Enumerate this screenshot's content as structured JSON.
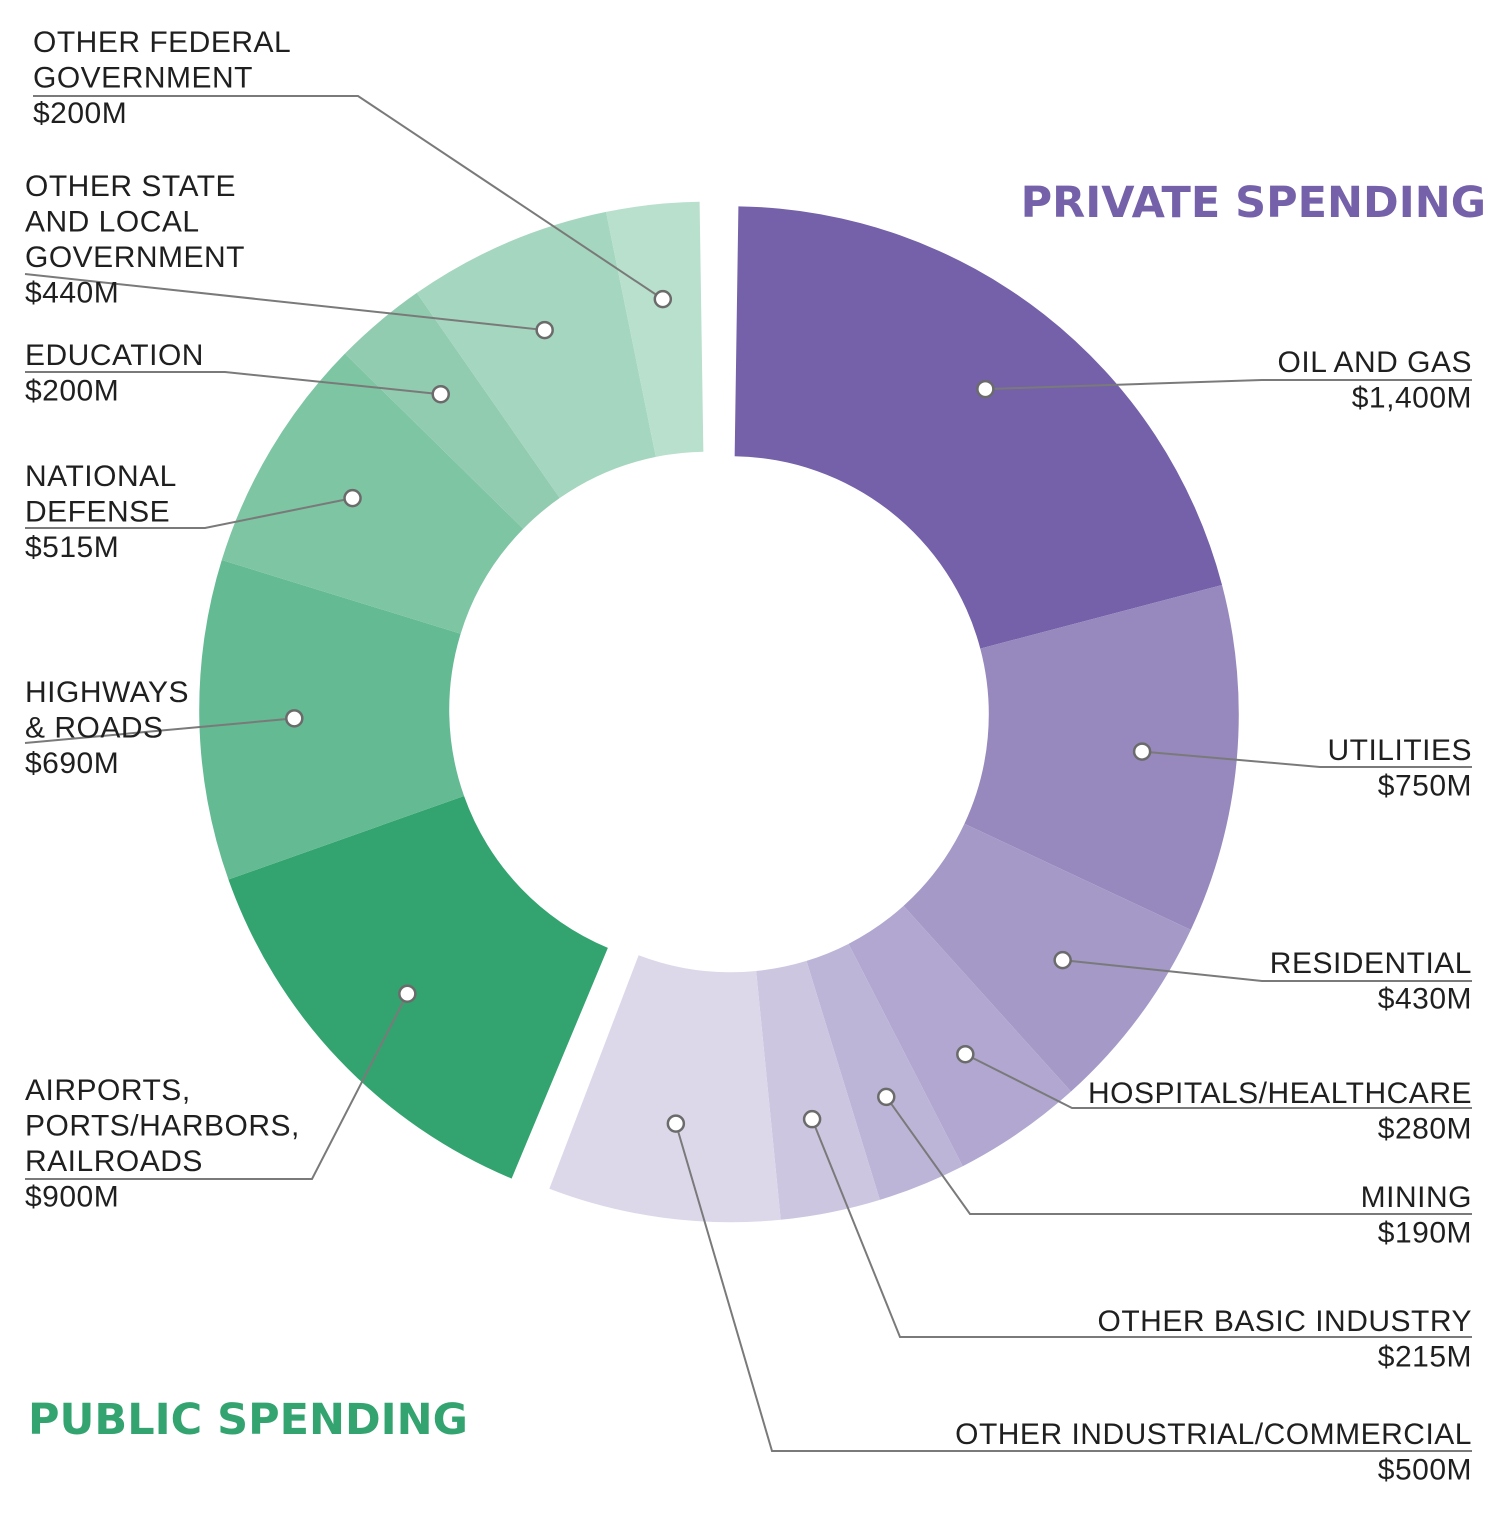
{
  "chart_data": {
    "type": "pie",
    "variant": "donut",
    "unit": "$M",
    "groups": [
      {
        "name": "PRIVATE SPENDING",
        "color": "#7461a9",
        "slices": [
          {
            "label": "OIL AND GAS",
            "value": 1400,
            "value_text": "$1,400M",
            "color": "#7461a9"
          },
          {
            "label": "UTILITIES",
            "value": 750,
            "value_text": "$750M",
            "color": "#9789bd"
          },
          {
            "label": "RESIDENTIAL",
            "value": 430,
            "value_text": "$430M",
            "color": "#a599c8"
          },
          {
            "label": "HOSPITALS/HEALTHCARE",
            "value": 280,
            "value_text": "$280M",
            "color": "#b1a7d0"
          },
          {
            "label": "MINING",
            "value": 190,
            "value_text": "$190M",
            "color": "#bdb5d7"
          },
          {
            "label": "OTHER BASIC INDUSTRY",
            "value": 215,
            "value_text": "$215M",
            "color": "#ccc6e0"
          },
          {
            "label": "OTHER INDUSTRIAL/COMMERCIAL",
            "value": 500,
            "value_text": "$500M",
            "color": "#dcd8ea"
          }
        ]
      },
      {
        "name": "PUBLIC SPENDING",
        "color": "#33a46f",
        "slices": [
          {
            "label": "AIRPORTS, PORTS/HARBORS, RAILROADS",
            "value": 900,
            "value_text": "$900M",
            "color": "#33a46f"
          },
          {
            "label": "HIGHWAYS & ROADS",
            "value": 690,
            "value_text": "$690M",
            "color": "#64ba93"
          },
          {
            "label": "NATIONAL DEFENSE",
            "value": 515,
            "value_text": "$515M",
            "color": "#7dc5a3"
          },
          {
            "label": "EDUCATION",
            "value": 200,
            "value_text": "$200M",
            "color": "#91ccb0"
          },
          {
            "label": "OTHER STATE AND LOCAL GOVERNMENT",
            "value": 440,
            "value_text": "$440M",
            "color": "#a5d6bf"
          },
          {
            "label": "OTHER FEDERAL GOVERNMENT",
            "value": 200,
            "value_text": "$200M",
            "color": "#b8e0cd"
          }
        ]
      }
    ]
  }
}
